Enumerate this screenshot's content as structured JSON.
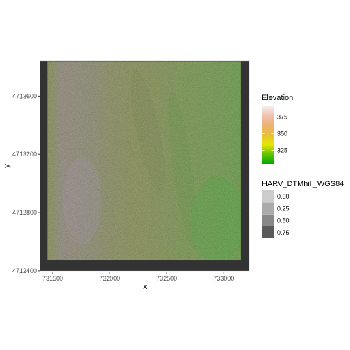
{
  "chart_data": {
    "type": "heatmap",
    "title": "",
    "xlabel": "x",
    "ylabel": "y",
    "xlim": [
      731390,
      733230
    ],
    "ylim": [
      4712390,
      4713850
    ],
    "x_ticks": [
      {
        "value": 731500,
        "label": "731500"
      },
      {
        "value": 732000,
        "label": "732000"
      },
      {
        "value": 732500,
        "label": "732500"
      },
      {
        "value": 733000,
        "label": "733000"
      }
    ],
    "y_ticks": [
      {
        "value": 4712400,
        "label": "4712400"
      },
      {
        "value": 4712800,
        "label": "4712800"
      },
      {
        "value": 4713200,
        "label": "4713200"
      },
      {
        "value": 4713600,
        "label": "4713600"
      }
    ],
    "raster_extent": {
      "xmin": 731453,
      "xmax": 733150,
      "ymin": 4712471,
      "ymax": 4713838
    },
    "hillshade_frame_extent": {
      "xmin": 731390,
      "xmax": 733220,
      "ymin": 4712400,
      "ymax": 4713840
    },
    "grid": true,
    "legend_position": "right",
    "legends": [
      {
        "title": "Elevation",
        "kind": "colorbar",
        "range": [
          305,
          392
        ],
        "breaks": [
          {
            "value": 375,
            "label": "375"
          },
          {
            "value": 350,
            "label": "350"
          },
          {
            "value": 325,
            "label": "325"
          }
        ],
        "colors": [
          "#00a600",
          "#63c600",
          "#e6e600",
          "#e9bd3a",
          "#ecb176",
          "#efc2b3",
          "#f2f2f2"
        ]
      },
      {
        "title": "HARV_DTMhill_WGS84",
        "kind": "discrete",
        "entries": [
          {
            "label": "0.00",
            "color": "#cccccc"
          },
          {
            "label": "0.25",
            "color": "#aaaaaa"
          },
          {
            "label": "0.50",
            "color": "#888888"
          },
          {
            "label": "0.75",
            "color": "#5a5a5a"
          }
        ]
      }
    ]
  }
}
